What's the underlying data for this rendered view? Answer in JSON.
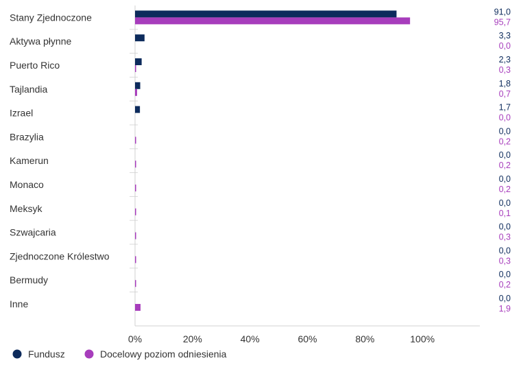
{
  "chart_data": {
    "type": "bar",
    "orientation": "horizontal",
    "categories": [
      "Stany Zjednoczone",
      "Aktywa płynne",
      "Puerto Rico",
      "Tajlandia",
      "Izrael",
      "Brazylia",
      "Kamerun",
      "Monaco",
      "Meksyk",
      "Szwajcaria",
      "Zjednoczone Królestwo",
      "Bermudy",
      "Inne"
    ],
    "series": [
      {
        "name": "Fundusz",
        "color": "#0d2b5c",
        "values": [
          91.0,
          3.3,
          2.3,
          1.8,
          1.7,
          0.0,
          0.0,
          0.0,
          0.0,
          0.0,
          0.0,
          0.0,
          0.0
        ],
        "labels": [
          "91,0",
          "3,3",
          "2,3",
          "1,8",
          "1,7",
          "0,0",
          "0,0",
          "0,0",
          "0,0",
          "0,0",
          "0,0",
          "0,0",
          "0,0"
        ]
      },
      {
        "name": "Docelowy poziom odniesienia",
        "color": "#a73dbc",
        "values": [
          95.7,
          0.0,
          0.3,
          0.7,
          0.0,
          0.2,
          0.2,
          0.2,
          0.1,
          0.3,
          0.3,
          0.2,
          1.9
        ],
        "labels": [
          "95,7",
          "0,0",
          "0,3",
          "0,7",
          "0,0",
          "0,2",
          "0,2",
          "0,2",
          "0,1",
          "0,3",
          "0,3",
          "0,2",
          "1,9"
        ]
      }
    ],
    "xlim": [
      0,
      120
    ],
    "xticks": [
      0,
      20,
      40,
      60,
      80,
      100
    ],
    "xtick_labels": [
      "0%",
      "20%",
      "40%",
      "60%",
      "80%",
      "100%"
    ],
    "grid": "horizontal separators",
    "legend": "bottom-left"
  }
}
